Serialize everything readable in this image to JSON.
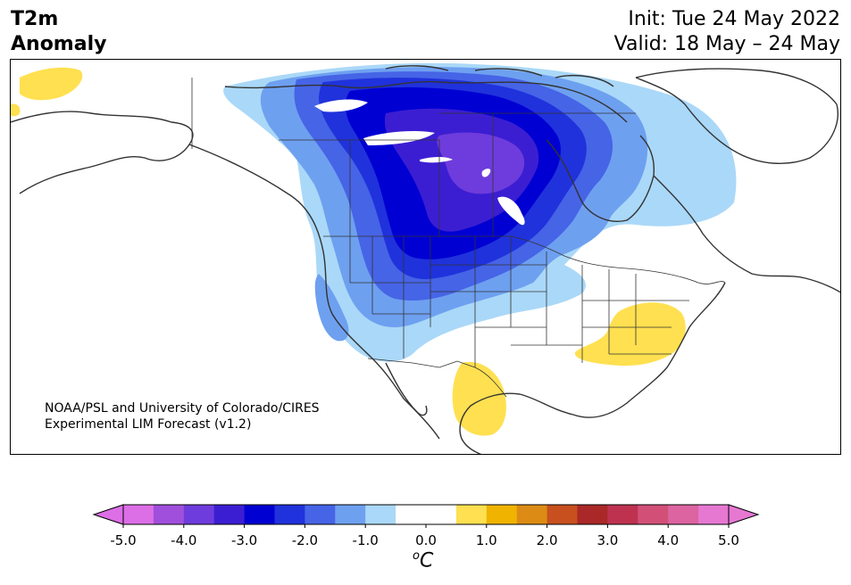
{
  "title": {
    "line1": "T2m",
    "line2": "Anomaly"
  },
  "init": "Init: Tue 24 May 2022",
  "valid": "Valid: 18 May – 24 May",
  "credit": {
    "line1": "NOAA/PSL and University of Colorado/CIRES",
    "line2": "Experimental LIM Forecast (v1.2)"
  },
  "colorbar": {
    "ticks": [
      "-5.0",
      "-4.0",
      "-3.0",
      "-2.0",
      "-1.0",
      "0.0",
      "1.0",
      "2.0",
      "3.0",
      "4.0",
      "5.0"
    ],
    "unit_base": "o",
    "unit_letter": "C",
    "colors": [
      "#dc6ee6",
      "#a04fdc",
      "#6e3cdc",
      "#3c1ed2",
      "#0000d2",
      "#2032dc",
      "#4664e6",
      "#6ea0f0",
      "#aad8f8",
      "#ffffff",
      "#ffffff",
      "#ffe050",
      "#f0b400",
      "#dc8c14",
      "#c8501e",
      "#aa2828",
      "#be3250",
      "#d25078",
      "#dc64a0",
      "#e678d2"
    ],
    "neg_end_color": "#dc6ee6",
    "pos_end_color": "#e678d2"
  },
  "anomaly_colors": {
    "c1": "#aad8f8",
    "c2": "#6ea0f0",
    "c3": "#4664e6",
    "c4": "#2032dc",
    "c5": "#0000d2",
    "c6": "#3c1ed2",
    "c7": "#6e3cdc",
    "warm": "#ffe050"
  }
}
